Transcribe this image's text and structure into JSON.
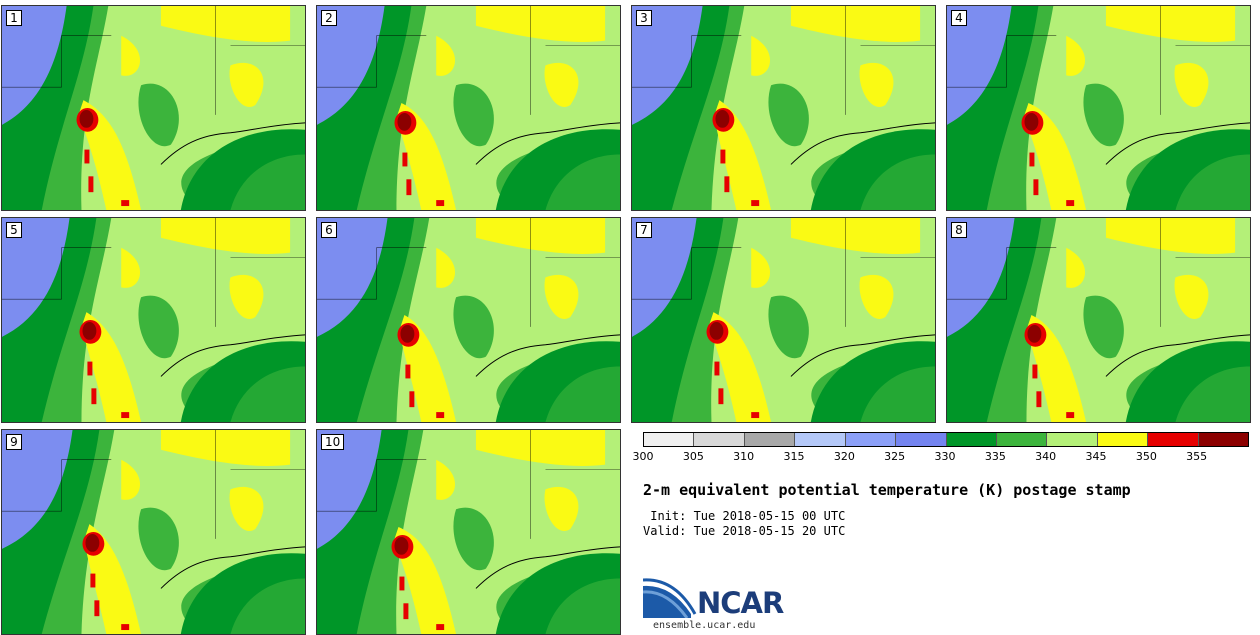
{
  "panels": [
    {
      "label": "1"
    },
    {
      "label": "2"
    },
    {
      "label": "3"
    },
    {
      "label": "4"
    },
    {
      "label": "5"
    },
    {
      "label": "6"
    },
    {
      "label": "7"
    },
    {
      "label": "8"
    },
    {
      "label": "9"
    },
    {
      "label": "10"
    }
  ],
  "colorbar": {
    "ticks": [
      "300",
      "305",
      "310",
      "315",
      "320",
      "325",
      "330",
      "335",
      "340",
      "345",
      "350",
      "355"
    ],
    "colors": [
      "#f0f0f0",
      "#d8d8d8",
      "#a8a8a8",
      "#b4c8f8",
      "#8ca0f8",
      "#7484f0",
      "#009628",
      "#3cb43c",
      "#b4f078",
      "#fafa14",
      "#e60000",
      "#8c0000"
    ]
  },
  "map_colors": {
    "cold": "#7c8df0",
    "dark_green": "#009628",
    "mid_green": "#3cb43c",
    "light_green": "#b4f078",
    "yellow": "#fafa14",
    "red": "#e60000",
    "dark_red": "#8c0000"
  },
  "title": "2-m equivalent potential temperature (K) postage stamp",
  "init": " Init: Tue 2018-05-15 00 UTC",
  "valid": "Valid: Tue 2018-05-15 20 UTC",
  "logo": {
    "text": "NCAR",
    "url": "ensemble.ucar.edu"
  }
}
